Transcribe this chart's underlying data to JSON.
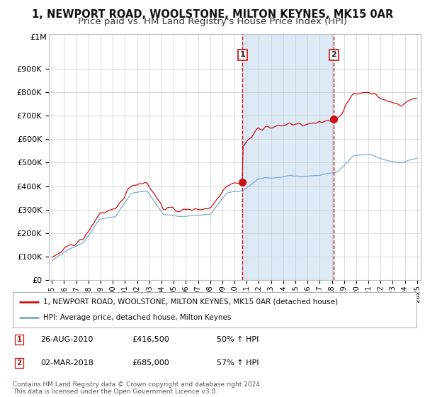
{
  "title": "1, NEWPORT ROAD, WOOLSTONE, MILTON KEYNES, MK15 0AR",
  "subtitle": "Price paid vs. HM Land Registry's House Price Index (HPI)",
  "title_fontsize": 10.5,
  "subtitle_fontsize": 9.5,
  "background_color": "#ffffff",
  "plot_bg_color": "#ffffff",
  "shade_color": "#dce9f7",
  "ylim": [
    0,
    1000000
  ],
  "yticks": [
    0,
    100000,
    200000,
    300000,
    400000,
    500000,
    600000,
    700000,
    800000,
    900000
  ],
  "ytick_labels": [
    "£0",
    "£100K",
    "£200K",
    "£300K",
    "£400K",
    "£500K",
    "£600K",
    "£700K",
    "£800K",
    "£900K"
  ],
  "ylim_top_label": "£1M",
  "sale1_date": 2010.65,
  "sale1_price": 416500,
  "sale2_date": 2018.17,
  "sale2_price": 685000,
  "sale1_label": "1",
  "sale2_label": "2",
  "legend_label_property": "1, NEWPORT ROAD, WOOLSTONE, MILTON KEYNES, MK15 0AR (detached house)",
  "legend_label_hpi": "HPI: Average price, detached house, Milton Keynes",
  "annotation1_date": "26-AUG-2010",
  "annotation1_price": "£416,500",
  "annotation1_hpi": "50% ↑ HPI",
  "annotation2_date": "02-MAR-2018",
  "annotation2_price": "£685,000",
  "annotation2_hpi": "57% ↑ HPI",
  "footer": "Contains HM Land Registry data © Crown copyright and database right 2024.\nThis data is licensed under the Open Government Licence v3.0.",
  "hpi_color": "#7aaad0",
  "property_color": "#cc1111",
  "vline_color": "#cc1111",
  "grid_color": "#cccccc",
  "shade_alpha": 0.4
}
